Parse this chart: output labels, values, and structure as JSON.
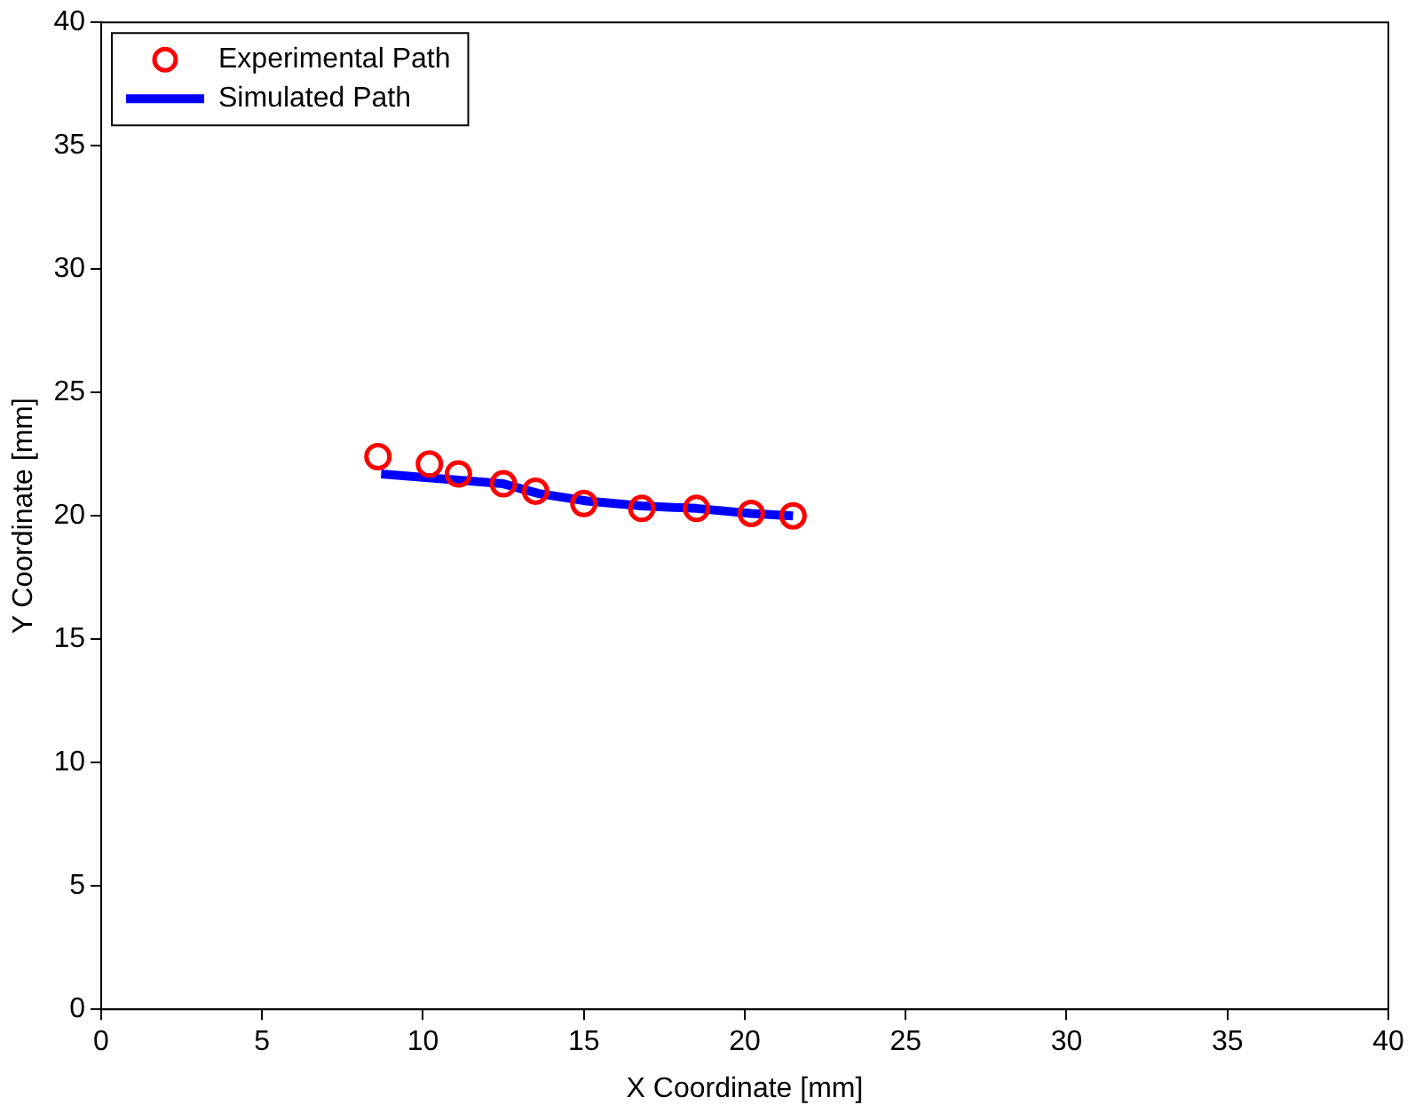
{
  "chart_data": {
    "type": "scatter",
    "xlabel": "X Coordinate [mm]",
    "ylabel": "Y Coordinate [mm]",
    "xlim": [
      0,
      40
    ],
    "xticks": [
      0,
      5,
      10,
      15,
      20,
      25,
      30,
      35,
      40
    ],
    "ylim": [
      0,
      40
    ],
    "yticks": [
      0,
      5,
      10,
      15,
      20,
      25,
      30,
      35,
      40
    ],
    "grid": false,
    "legend": "top left",
    "series": [
      {
        "name": "Experimental Path",
        "type": "scatter",
        "marker": "circle",
        "color": "#ff0000",
        "x": [
          8.6,
          10.2,
          11.1,
          12.5,
          13.5,
          15.0,
          16.8,
          18.5,
          20.2,
          21.5
        ],
        "values": [
          22.4,
          22.1,
          21.7,
          21.3,
          21.0,
          20.5,
          20.3,
          20.3,
          20.1,
          20.0
        ]
      },
      {
        "name": "Simulated Path",
        "type": "line",
        "marker": "none",
        "line_style": "solid",
        "color": "#0000ff",
        "x": [
          8.7,
          12.5,
          13.6,
          15.1,
          16.8,
          18.5,
          20.2,
          21.5
        ],
        "values": [
          21.7,
          21.3,
          20.9,
          20.6,
          20.4,
          20.3,
          20.1,
          20.0
        ]
      }
    ]
  }
}
